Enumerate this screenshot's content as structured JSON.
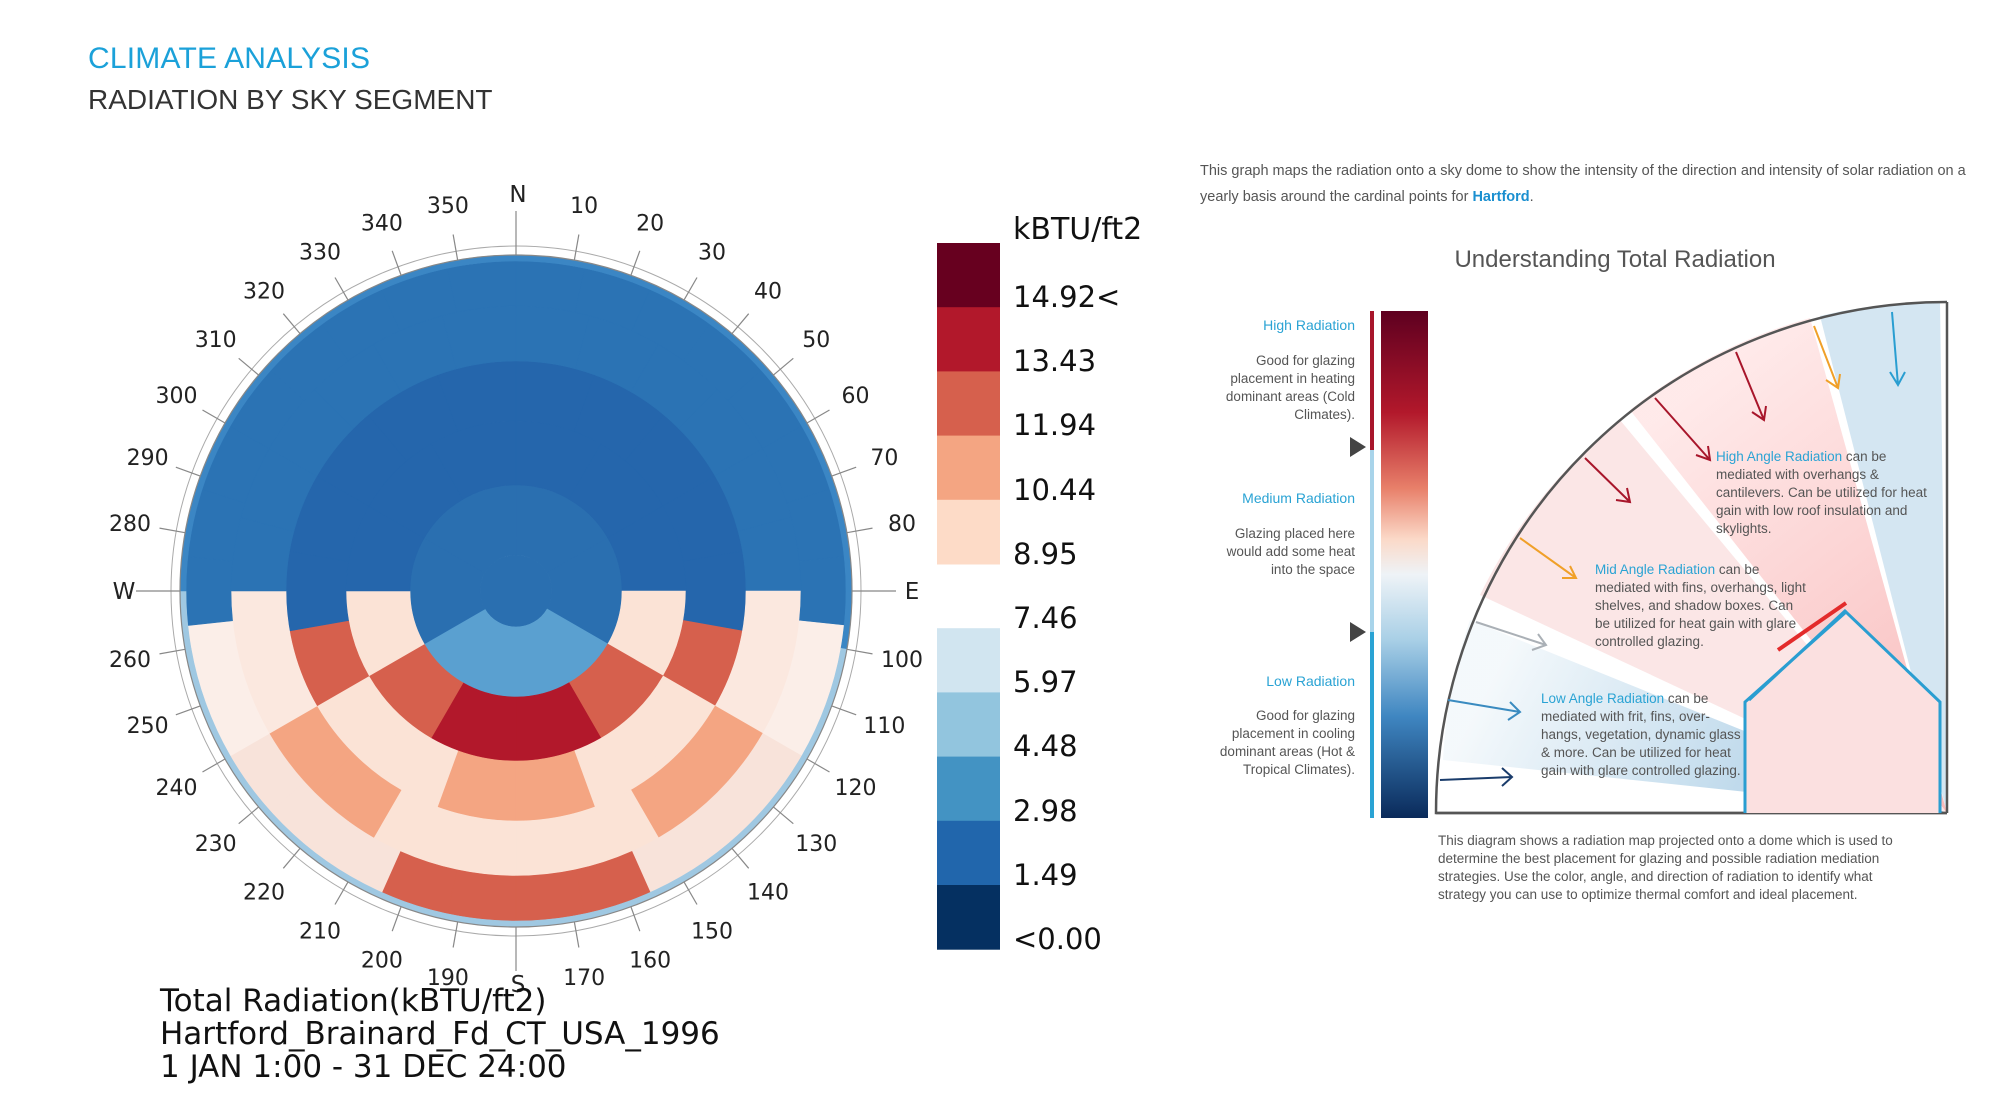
{
  "header": {
    "title": "CLIMATE ANALYSIS",
    "subtitle": "RADIATION BY SKY SEGMENT"
  },
  "dome": {
    "cardinals": {
      "north": "N",
      "east": "E",
      "south": "S",
      "west": "W"
    },
    "degree_labels": [
      "10",
      "20",
      "30",
      "40",
      "50",
      "60",
      "70",
      "80",
      "100",
      "110",
      "120",
      "130",
      "140",
      "150",
      "160",
      "170",
      "190",
      "200",
      "210",
      "220",
      "230",
      "240",
      "250",
      "260",
      "280",
      "290",
      "300",
      "310",
      "320",
      "330",
      "340",
      "350"
    ],
    "caption": [
      "Total Radiation(kBTU/ft2)",
      "Hartford_Brainard_Fd_CT_USA_1996",
      "1 JAN 1:00 - 31 DEC 24:00"
    ]
  },
  "legend": {
    "unit": "kBTU/ft2",
    "labels": [
      "14.92<",
      "13.43",
      "11.94",
      "10.44",
      "8.95",
      "7.46",
      "5.97",
      "4.48",
      "2.98",
      "1.49",
      "<0.00"
    ],
    "colors": [
      "#67001f",
      "#b2182b",
      "#d6604d",
      "#f4a582",
      "#fddbc7",
      "#f7f7f7",
      "#d1e5f0",
      "#92c5de",
      "#4393c3",
      "#2166ac",
      "#053061"
    ]
  },
  "info": {
    "intro": "This graph maps the radiation onto a sky dome to show the intensity of the direction and intensity of solar radiation on a yearly basis around the cardinal points for",
    "city": "Hartford",
    "intro_end": ".",
    "diagram_title": "Understanding Total Radiation",
    "high": {
      "heading": "High Radiation",
      "text": "Good for glazing placement in heating dominant areas (Cold Climates)."
    },
    "medium": {
      "heading": "Medium Radiation",
      "text": "Glazing placed here would add some heat into the space"
    },
    "low": {
      "heading": "Low Radiation",
      "text": "Good for glazing placement in cooling dominant areas (Hot & Tropical Climates)."
    },
    "high_angle": {
      "label": "High Angle Radiation",
      "text": "can be mediated with overhangs & cantilevers. Can be utilized for heat gain with low roof insulation and skylights."
    },
    "mid_angle": {
      "label": "Mid Angle Radiation",
      "text": "can be mediated with fins, overhangs, light shelves, and shadow boxes. Can be utilized for heat gain with glare controlled glazing."
    },
    "low_angle": {
      "label": "Low Angle Radiation",
      "text": "can be mediated with frit, fins, over-hangs, vegetation, dynamic glass & more. Can be utilized for heat gain with glare controlled glazing."
    },
    "bottom_note": "This diagram shows a radiation map projected onto a dome which is used to determine the best placement for glazing and possible radiation mediation strategies. Use the color, angle, and direction of radiation to identify what strategy you can use to optimize thermal comfort and ideal placement."
  }
}
